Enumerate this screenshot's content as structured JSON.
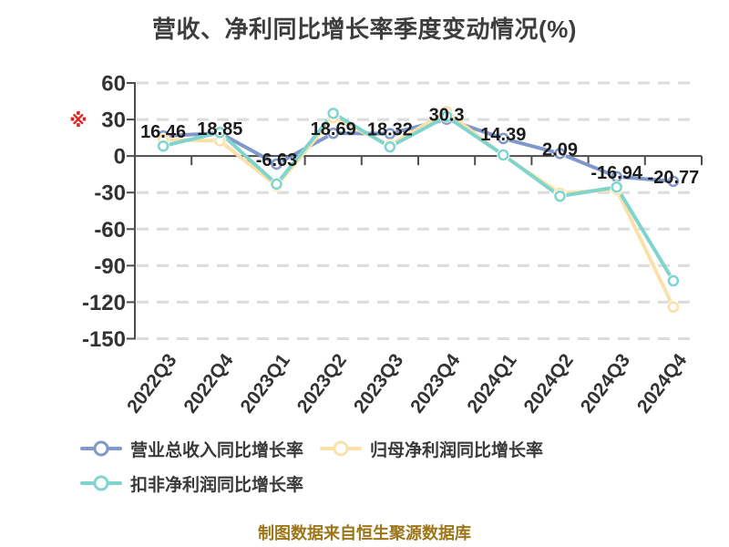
{
  "title": "营收、净利同比增长率季度变动情况(%)",
  "footnote_mark": "※",
  "caption": "制图数据来自恒生聚源数据库",
  "colors": {
    "grid": "#dcdcdc",
    "axis": "#4d4d4d",
    "tick_text": "#333333",
    "data_label_text": "#1c1c1c",
    "title_text": "#3d3d3d",
    "caption_text": "#9d761a",
    "footnote_mark_color": "#e02525",
    "marker_fill": "#ffffff"
  },
  "chart_data": {
    "type": "line",
    "title": "营收、净利同比增长率季度变动情况(%)",
    "categories": [
      "2022Q3",
      "2022Q4",
      "2023Q1",
      "2023Q2",
      "2023Q3",
      "2023Q4",
      "2024Q1",
      "2024Q2",
      "2024Q3",
      "2024Q4"
    ],
    "y_ticks": [
      60,
      30,
      0,
      -30,
      -60,
      -90,
      -120,
      -150
    ],
    "ylim": [
      -150,
      60
    ],
    "grid": "dashed-horizontal",
    "legend_position": "bottom-left",
    "series": [
      {
        "id": "revenue-yoy-growth",
        "name": "营业总收入同比增长率",
        "color": "#8098cb",
        "values": [
          16.46,
          18.85,
          -6.63,
          18.69,
          18.32,
          30.3,
          14.39,
          2.09,
          -16.94,
          -20.77
        ],
        "point_labels": [
          "16.46",
          "18.85",
          "-6.63",
          "18.69",
          "18.32",
          "30.3",
          "14.39",
          "2.09",
          "-16.94",
          "-20.77"
        ]
      },
      {
        "id": "parent-net-profit-yoy-growth",
        "name": "归母净利润同比增长率",
        "color": "#fbe1a9",
        "values": [
          13.5,
          12.5,
          -24.5,
          31.5,
          8.8,
          36.5,
          0.4,
          -30.5,
          -27.5,
          -124.0
        ],
        "point_labels": []
      },
      {
        "id": "deducted-net-profit-yoy-growth",
        "name": "扣非净利润同比增长率",
        "color": "#7fd5cd",
        "values": [
          8.2,
          19.3,
          -23.0,
          35.0,
          7.5,
          32.5,
          0.9,
          -33.0,
          -25.5,
          -102.5
        ],
        "point_labels": []
      }
    ]
  }
}
